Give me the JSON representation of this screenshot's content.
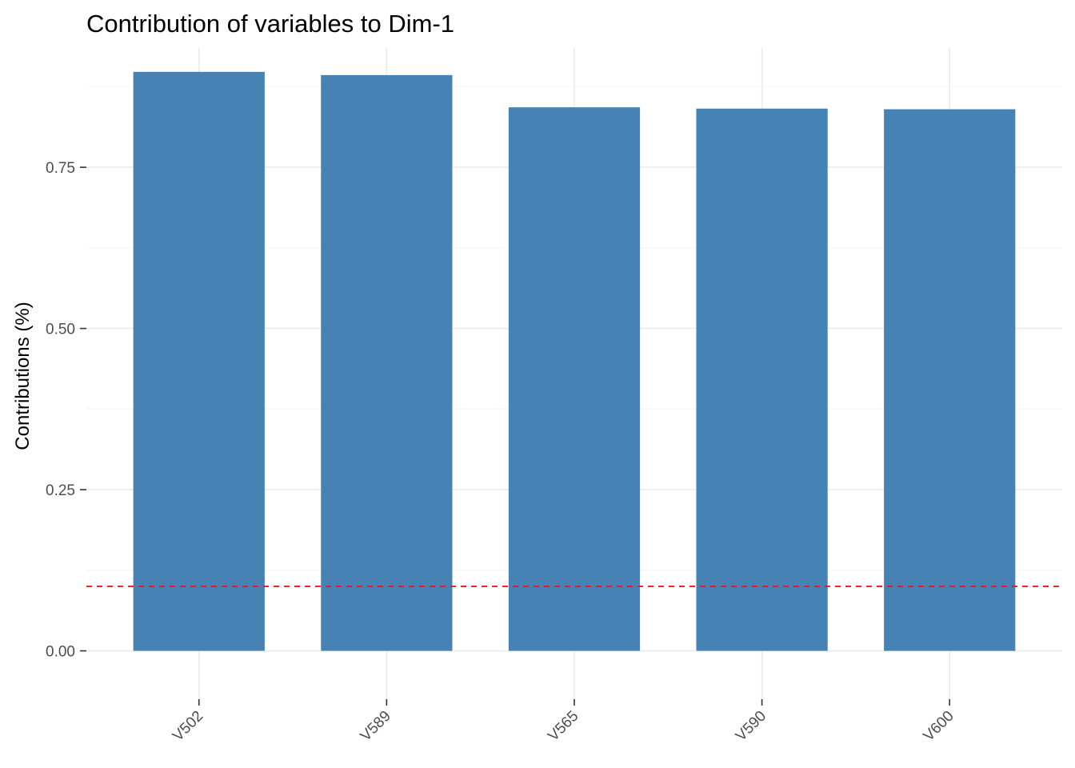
{
  "chart_data": {
    "type": "bar",
    "title": "Contribution of variables to Dim-1",
    "xlabel": "",
    "ylabel": "Contributions (%)",
    "categories": [
      "V502",
      "V589",
      "V565",
      "V590",
      "V600"
    ],
    "values": [
      0.898,
      0.893,
      0.843,
      0.841,
      0.84
    ],
    "ylim": [
      -0.075,
      0.935
    ],
    "yticks": [
      0,
      0.25,
      0.5,
      0.75
    ],
    "ytick_labels": [
      "0.00",
      "0.25",
      "0.50",
      "0.75"
    ],
    "reference_line": 0.1,
    "bar_color": "#4682B4",
    "reference_line_color": "#E41A1C",
    "grid": true
  }
}
